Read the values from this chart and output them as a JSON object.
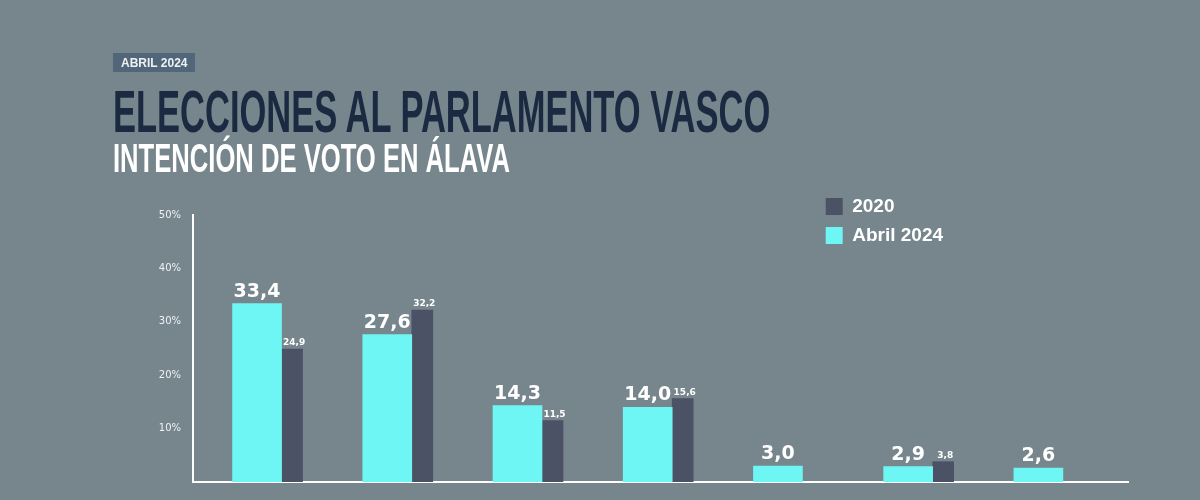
{
  "chart_data": {
    "type": "bar",
    "title": "ELECCIONES AL PARLAMENTO VASCO",
    "subtitle": "INTENCIÓN DE VOTO EN ÁLAVA",
    "annotations": [
      "ABRIL 2024"
    ],
    "categories": [
      null,
      null,
      null,
      null,
      null,
      null,
      null
    ],
    "series": [
      {
        "name": "Abril 2024",
        "color": "#6ef6f4",
        "values": [
          33.4,
          27.6,
          14.3,
          14.0,
          3.0,
          2.9,
          2.6
        ],
        "value_labels": [
          "33,4",
          "27,6",
          "14,3",
          "14,0",
          "3,0",
          "2,9",
          "2,6"
        ]
      },
      {
        "name": "2020",
        "color": "#4b5266",
        "values": [
          24.9,
          32.2,
          11.5,
          15.6,
          null,
          3.8,
          null
        ],
        "value_labels": [
          "24,9",
          "32,2",
          "11,5",
          "15,6",
          null,
          "3,8",
          null
        ]
      }
    ],
    "ylim": [
      0,
      50
    ],
    "yticks": [
      {
        "value": 10,
        "label": "10%"
      },
      {
        "value": 20,
        "label": "20%"
      },
      {
        "value": 30,
        "label": "30%"
      },
      {
        "value": 40,
        "label": "40%"
      },
      {
        "value": 50,
        "label": "50%"
      }
    ],
    "grid": false,
    "legend": "top right"
  }
}
